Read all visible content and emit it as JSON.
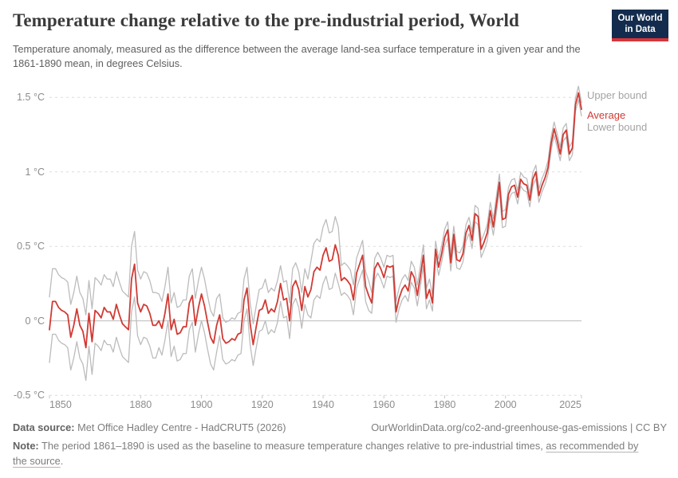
{
  "header": {
    "title": "Temperature change relative to the pre-industrial period, World",
    "subtitle": "Temperature anomaly, measured as the difference between the average land-sea surface temperature in a given year and the 1861-1890 mean, in degrees Celsius.",
    "logo": {
      "line1": "Our World",
      "line2": "in Data"
    }
  },
  "chart_data": {
    "type": "line",
    "title": "Temperature change relative to the pre-industrial period, World",
    "xlabel": "",
    "ylabel": "",
    "grid": "horizontal-dashed",
    "legend_position": "right-of-line-ends",
    "ylim": [
      -0.5,
      1.55
    ],
    "xlim": [
      1850,
      2025
    ],
    "years": {
      "start": 1850,
      "end": 2025,
      "step": 1
    },
    "yticks": [
      {
        "value": 1.5,
        "label": "1.5 °C"
      },
      {
        "value": 1.0,
        "label": "1 °C"
      },
      {
        "value": 0.5,
        "label": "0.5 °C"
      },
      {
        "value": 0.0,
        "label": "0 °C"
      },
      {
        "value": -0.5,
        "label": "-0.5 °C"
      }
    ],
    "xticks": [
      {
        "value": 1850,
        "label": "1850",
        "align": "start"
      },
      {
        "value": 1880,
        "label": "1880",
        "align": "middle"
      },
      {
        "value": 1900,
        "label": "1900",
        "align": "middle"
      },
      {
        "value": 1920,
        "label": "1920",
        "align": "middle"
      },
      {
        "value": 1940,
        "label": "1940",
        "align": "middle"
      },
      {
        "value": 1960,
        "label": "1960",
        "align": "middle"
      },
      {
        "value": 1980,
        "label": "1980",
        "align": "middle"
      },
      {
        "value": 2000,
        "label": "2000",
        "align": "middle"
      },
      {
        "value": 2025,
        "label": "2025",
        "align": "end"
      }
    ],
    "series": [
      {
        "name": "Upper bound",
        "color": "#bcbcbc",
        "derived": "average + uncertainty_halfwidth(year)"
      },
      {
        "name": "Average",
        "color": "#d13a34",
        "values": [
          -0.06,
          0.13,
          0.13,
          0.09,
          0.07,
          0.06,
          0.04,
          -0.11,
          -0.03,
          0.08,
          -0.03,
          -0.07,
          -0.18,
          0.05,
          -0.14,
          0.07,
          0.05,
          0.02,
          0.09,
          0.06,
          0.06,
          0.01,
          0.11,
          0.04,
          -0.02,
          -0.04,
          -0.06,
          0.28,
          0.38,
          0.12,
          0.06,
          0.11,
          0.1,
          0.05,
          -0.03,
          -0.03,
          0.0,
          -0.05,
          0.05,
          0.18,
          -0.06,
          0.01,
          -0.09,
          -0.08,
          -0.04,
          -0.04,
          0.12,
          0.17,
          -0.03,
          0.09,
          0.18,
          0.1,
          -0.01,
          -0.11,
          -0.15,
          -0.03,
          0.04,
          -0.12,
          -0.15,
          -0.14,
          -0.12,
          -0.13,
          -0.09,
          -0.08,
          0.14,
          0.22,
          -0.02,
          -0.16,
          -0.04,
          0.07,
          0.08,
          0.14,
          0.05,
          0.08,
          0.06,
          0.13,
          0.25,
          0.14,
          0.15,
          0.0,
          0.23,
          0.27,
          0.21,
          0.07,
          0.23,
          0.16,
          0.21,
          0.33,
          0.36,
          0.34,
          0.44,
          0.49,
          0.4,
          0.41,
          0.51,
          0.44,
          0.27,
          0.29,
          0.27,
          0.24,
          0.14,
          0.32,
          0.38,
          0.44,
          0.23,
          0.17,
          0.12,
          0.35,
          0.39,
          0.35,
          0.29,
          0.37,
          0.36,
          0.37,
          0.06,
          0.15,
          0.21,
          0.24,
          0.2,
          0.33,
          0.29,
          0.17,
          0.3,
          0.44,
          0.15,
          0.21,
          0.12,
          0.48,
          0.36,
          0.45,
          0.56,
          0.61,
          0.39,
          0.58,
          0.41,
          0.4,
          0.45,
          0.59,
          0.64,
          0.54,
          0.72,
          0.7,
          0.48,
          0.53,
          0.59,
          0.74,
          0.63,
          0.78,
          0.93,
          0.68,
          0.69,
          0.85,
          0.9,
          0.91,
          0.83,
          0.95,
          0.92,
          0.91,
          0.81,
          0.95,
          1.0,
          0.84,
          0.91,
          0.96,
          1.03,
          1.19,
          1.29,
          1.21,
          1.12,
          1.25,
          1.28,
          1.12,
          1.16,
          1.45,
          1.53,
          1.42
        ]
      },
      {
        "name": "Lower bound",
        "color": "#bcbcbc",
        "derived": "average - uncertainty_halfwidth(year)"
      }
    ],
    "uncertainty_halfwidth_segments": [
      {
        "from": 1850,
        "to": 1885,
        "value": 0.22
      },
      {
        "from": 1886,
        "to": 1905,
        "value": 0.18
      },
      {
        "from": 1906,
        "to": 1925,
        "value": 0.14
      },
      {
        "from": 1926,
        "to": 1935,
        "value": 0.12
      },
      {
        "from": 1936,
        "to": 1945,
        "value": 0.19
      },
      {
        "from": 1946,
        "to": 1955,
        "value": 0.1
      },
      {
        "from": 1956,
        "to": 1975,
        "value": 0.07
      },
      {
        "from": 1976,
        "to": 2000,
        "value": 0.055
      },
      {
        "from": 2001,
        "to": 2025,
        "value": 0.045
      }
    ]
  },
  "footer": {
    "datasource_label": "Data source:",
    "datasource_value": " Met Office Hadley Centre - HadCRUT5 (2026)",
    "credit": "OurWorldinData.org/co2-and-greenhouse-gas-emissions | CC BY",
    "note_label": "Note:",
    "note_text": " The period 1861–1890 is used as the baseline to measure temperature changes relative to pre-industrial times, ",
    "note_link": "as recommended by the source",
    "note_period": "."
  },
  "colors": {
    "average_line": "#d13a34",
    "bound_line": "#bcbcbc",
    "logo_navy": "#132c4d",
    "logo_red": "#d8353a"
  }
}
